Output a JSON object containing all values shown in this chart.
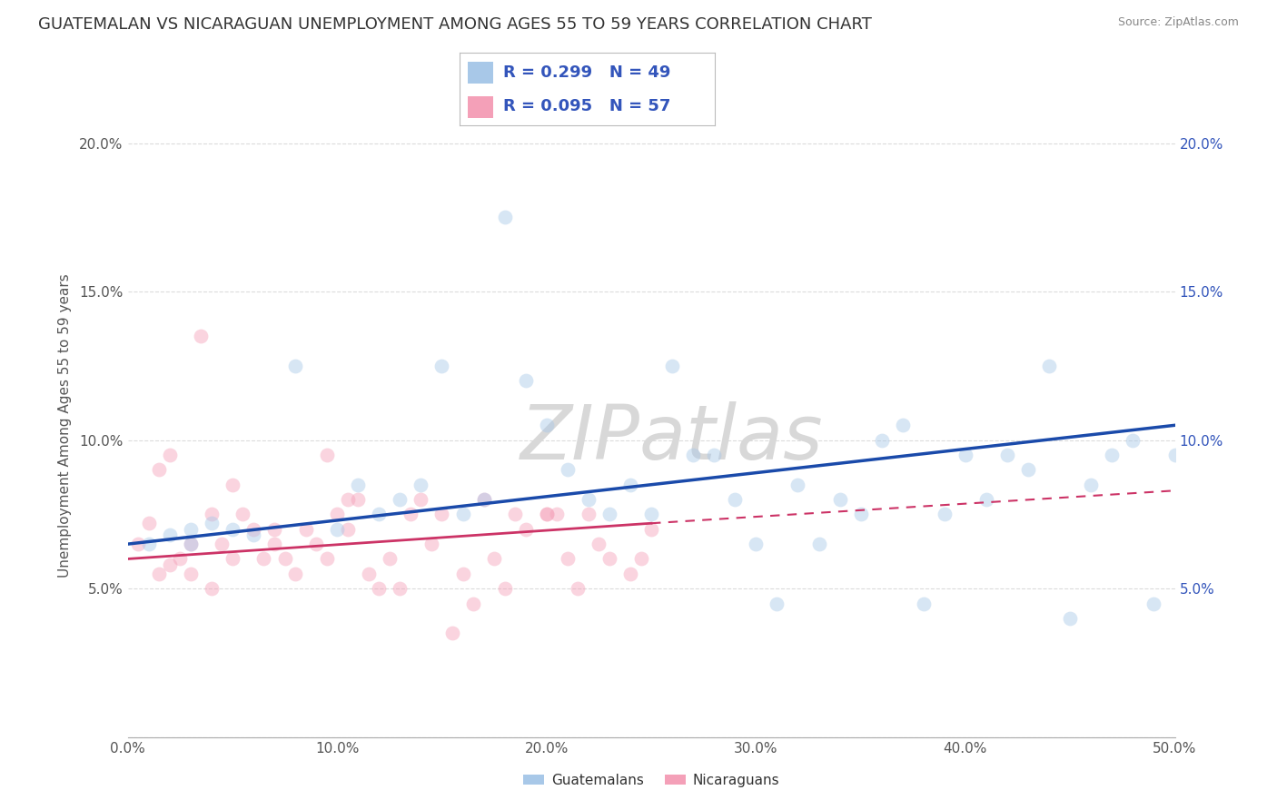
{
  "title": "GUATEMALAN VS NICARAGUAN UNEMPLOYMENT AMONG AGES 55 TO 59 YEARS CORRELATION CHART",
  "source": "Source: ZipAtlas.com",
  "ylabel": "Unemployment Among Ages 55 to 59 years",
  "watermark": "ZIPatlas",
  "xlim": [
    0,
    50
  ],
  "ylim": [
    0,
    21
  ],
  "xticks": [
    0,
    10,
    20,
    30,
    40,
    50
  ],
  "yticks": [
    0,
    5,
    10,
    15,
    20
  ],
  "xticklabels": [
    "0.0%",
    "10.0%",
    "20.0%",
    "30.0%",
    "40.0%",
    "50.0%"
  ],
  "yticklabels": [
    "",
    "5.0%",
    "10.0%",
    "15.0%",
    "20.0%"
  ],
  "yticklabels_right": [
    "",
    "5.0%",
    "10.0%",
    "15.0%",
    "20.0%"
  ],
  "guatemalan_color": "#a8c8e8",
  "nicaraguan_color": "#f4a0b8",
  "trend_blue": "#1a4aaa",
  "trend_pink": "#cc3366",
  "legend_color": "#3355bb",
  "guatemalan_R": 0.299,
  "guatemalan_N": 49,
  "nicaraguan_R": 0.095,
  "nicaraguan_N": 57,
  "guatemalan_x": [
    1,
    2,
    3,
    4,
    5,
    6,
    8,
    10,
    11,
    12,
    13,
    14,
    15,
    16,
    17,
    18,
    19,
    20,
    21,
    22,
    23,
    24,
    25,
    26,
    27,
    28,
    29,
    30,
    31,
    32,
    33,
    34,
    35,
    36,
    37,
    38,
    39,
    40,
    41,
    42,
    43,
    44,
    45,
    46,
    47,
    48,
    49,
    50,
    3
  ],
  "guatemalan_y": [
    6.5,
    6.8,
    6.5,
    7.2,
    7.0,
    6.8,
    12.5,
    7.0,
    8.5,
    7.5,
    8.0,
    8.5,
    12.5,
    7.5,
    8.0,
    17.5,
    12.0,
    10.5,
    9.0,
    8.0,
    7.5,
    8.5,
    7.5,
    12.5,
    9.5,
    9.5,
    8.0,
    6.5,
    4.5,
    8.5,
    6.5,
    8.0,
    7.5,
    10.0,
    10.5,
    4.5,
    7.5,
    9.5,
    8.0,
    9.5,
    9.0,
    12.5,
    4.0,
    8.5,
    9.5,
    10.0,
    4.5,
    9.5,
    7.0
  ],
  "nicaraguan_x": [
    0.5,
    1.0,
    1.5,
    2.0,
    2.5,
    3.0,
    3.5,
    4.0,
    4.5,
    5.0,
    5.5,
    6.0,
    6.5,
    7.0,
    7.5,
    8.0,
    8.5,
    9.0,
    9.5,
    10.0,
    10.5,
    11.0,
    11.5,
    12.0,
    12.5,
    13.0,
    13.5,
    14.0,
    14.5,
    15.0,
    15.5,
    16.0,
    16.5,
    17.0,
    17.5,
    18.0,
    18.5,
    19.0,
    20.0,
    20.5,
    21.0,
    21.5,
    22.0,
    22.5,
    23.0,
    24.0,
    24.5,
    25.0,
    9.5,
    1.5,
    2.0,
    4.0,
    5.0,
    7.0,
    10.5,
    3.0,
    20.0
  ],
  "nicaraguan_y": [
    6.5,
    7.2,
    5.5,
    5.8,
    6.0,
    5.5,
    13.5,
    5.0,
    6.5,
    6.0,
    7.5,
    7.0,
    6.0,
    6.5,
    6.0,
    5.5,
    7.0,
    6.5,
    6.0,
    7.5,
    7.0,
    8.0,
    5.5,
    5.0,
    6.0,
    5.0,
    7.5,
    8.0,
    6.5,
    7.5,
    3.5,
    5.5,
    4.5,
    8.0,
    6.0,
    5.0,
    7.5,
    7.0,
    7.5,
    7.5,
    6.0,
    5.0,
    7.5,
    6.5,
    6.0,
    5.5,
    6.0,
    7.0,
    9.5,
    9.0,
    9.5,
    7.5,
    8.5,
    7.0,
    8.0,
    6.5,
    7.5
  ],
  "background_color": "#ffffff",
  "grid_color": "#cccccc",
  "title_fontsize": 13,
  "axis_label_fontsize": 11,
  "tick_fontsize": 11,
  "legend_fontsize": 13,
  "watermark_fontsize": 60,
  "dot_size": 130,
  "dot_alpha": 0.45,
  "blue_trend_start_x": 0,
  "blue_trend_start_y": 6.5,
  "blue_trend_end_x": 50,
  "blue_trend_end_y": 10.5,
  "pink_solid_start_x": 0,
  "pink_solid_start_y": 6.0,
  "pink_solid_end_x": 25,
  "pink_solid_end_y": 7.2,
  "pink_dash_start_x": 25,
  "pink_dash_start_y": 7.2,
  "pink_dash_end_x": 50,
  "pink_dash_end_y": 8.3
}
